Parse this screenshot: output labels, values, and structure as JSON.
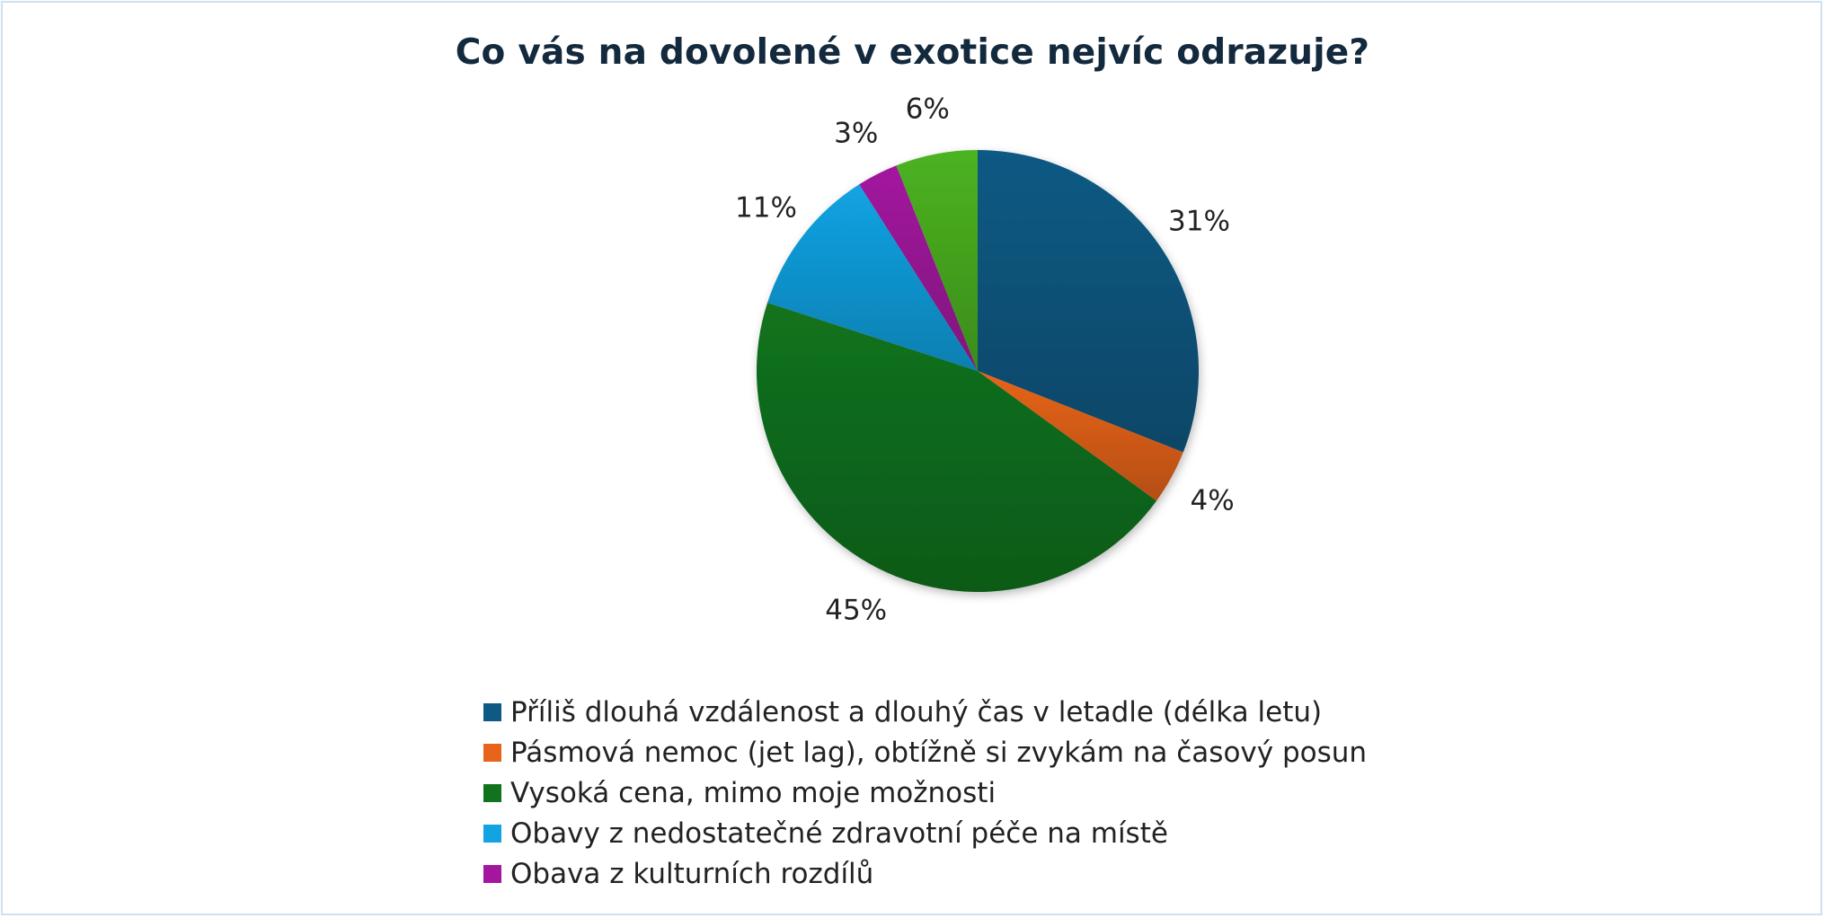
{
  "chart_data": {
    "type": "pie",
    "title": "Co vás na dovolené v exotice nejvíc odrazuje?",
    "slices": [
      {
        "label": "Příliš dlouhá vzdálenost a dlouhý čas v letadle (délka letu)",
        "value": 31,
        "display": "31%",
        "color": "#0e5a84",
        "in_legend": true
      },
      {
        "label": "Pásmová nemoc (jet lag), obtížně si zvykám na časový posun",
        "value": 4,
        "display": "4%",
        "color": "#e8641a",
        "in_legend": true
      },
      {
        "label": "Vysoká cena, mimo moje možnosti",
        "value": 45,
        "display": "45%",
        "color": "#12731f",
        "in_legend": true
      },
      {
        "label": "Obavy z nedostatečné zdravotní péče na místě",
        "value": 11,
        "display": "11%",
        "color": "#12a3e3",
        "in_legend": true
      },
      {
        "label": "Obava z kulturních rozdílů",
        "value": 3,
        "display": "3%",
        "color": "#a3179f",
        "in_legend": true
      },
      {
        "label": "",
        "value": 6,
        "display": "6%",
        "color": "#4cb321",
        "in_legend": false
      }
    ],
    "legend_position": "bottom"
  }
}
